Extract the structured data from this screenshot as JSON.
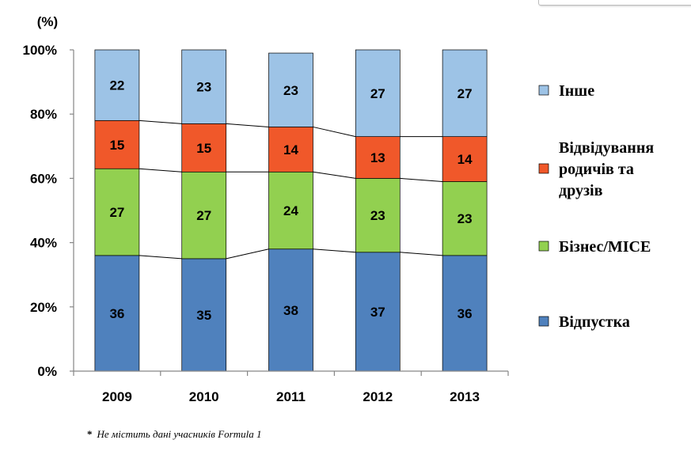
{
  "chart_data": {
    "type": "bar",
    "stacked": true,
    "percent_stacked": true,
    "unit_label": "(%)",
    "categories": [
      "2009",
      "2010",
      "2011",
      "2012",
      "2013"
    ],
    "y_ticks": [
      "0%",
      "20%",
      "40%",
      "60%",
      "80%",
      "100%"
    ],
    "ylim": [
      0,
      100
    ],
    "grid": false,
    "legend_position": "right",
    "series": [
      {
        "name": "Відпустка",
        "color": "#4F81BD",
        "values": [
          36,
          35,
          38,
          37,
          36
        ]
      },
      {
        "name": "Бізнес/MICE",
        "color": "#92D050",
        "values": [
          27,
          27,
          24,
          23,
          23
        ]
      },
      {
        "name": "Відвідування родичів та друзів",
        "legend_lines": [
          "Відвідування",
          "родичів та",
          "друзів"
        ],
        "color": "#F0582A",
        "values": [
          15,
          15,
          14,
          13,
          14
        ]
      },
      {
        "name": "Інше",
        "color": "#9DC3E6",
        "values": [
          22,
          23,
          23,
          27,
          27
        ]
      }
    ],
    "footnote_marker": "*",
    "footnote": "Не містить дані учасників Formula 1"
  }
}
